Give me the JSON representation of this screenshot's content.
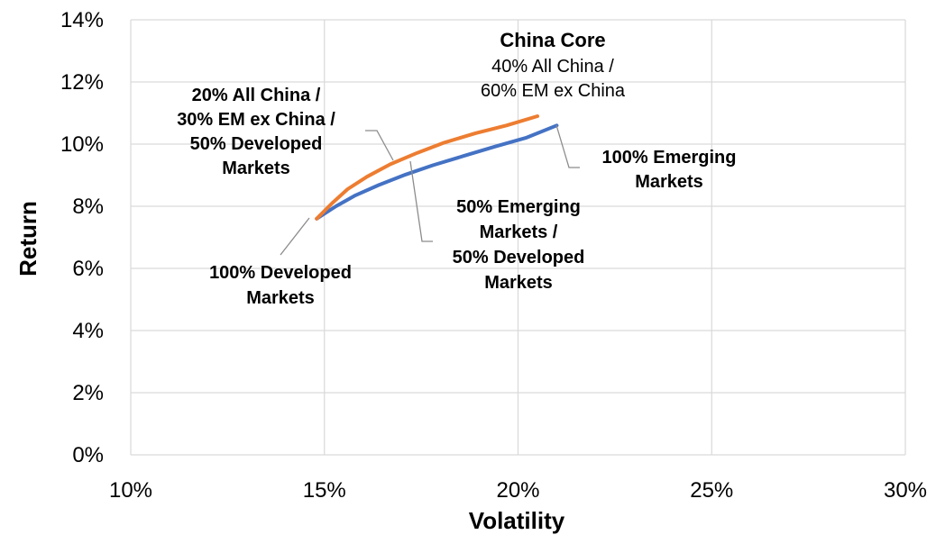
{
  "chart_data": {
    "type": "line",
    "xlabel": "Volatility",
    "ylabel": "Return",
    "xlim": [
      0.1,
      0.3
    ],
    "ylim": [
      0,
      0.14
    ],
    "x_ticks": [
      "10%",
      "15%",
      "20%",
      "25%",
      "30%"
    ],
    "y_ticks": [
      "0%",
      "2%",
      "4%",
      "6%",
      "8%",
      "10%",
      "12%",
      "14%"
    ],
    "grid": true,
    "series": [
      {
        "color": "#4472C4",
        "x": [
          0.148,
          0.153,
          0.158,
          0.164,
          0.171,
          0.178,
          0.186,
          0.194,
          0.202,
          0.21
        ],
        "y": [
          0.076,
          0.08,
          0.0835,
          0.0868,
          0.0902,
          0.0932,
          0.0962,
          0.0992,
          0.102,
          0.106
        ]
      },
      {
        "color": "#ED7D31",
        "x": [
          0.148,
          0.152,
          0.156,
          0.161,
          0.167,
          0.174,
          0.181,
          0.189,
          0.197,
          0.205
        ],
        "y": [
          0.076,
          0.081,
          0.0855,
          0.0895,
          0.0935,
          0.0972,
          0.1005,
          0.1035,
          0.106,
          0.109
        ]
      }
    ],
    "annotations": {
      "china_core_title": "China Core",
      "china_core_line1": "40% All China /",
      "china_core_line2": "60% EM ex China",
      "mix_line1": "20% All China /",
      "mix_line2": "30% EM ex China /",
      "mix_line3": "50% Developed",
      "mix_line4": "Markets",
      "em_line1": "100% Emerging",
      "em_line2": "Markets",
      "half_line1": "50% Emerging",
      "half_line2": "Markets /",
      "half_line3": "50% Developed",
      "half_line4": "Markets",
      "dm_line1": "100% Developed",
      "dm_line2": "Markets"
    }
  }
}
